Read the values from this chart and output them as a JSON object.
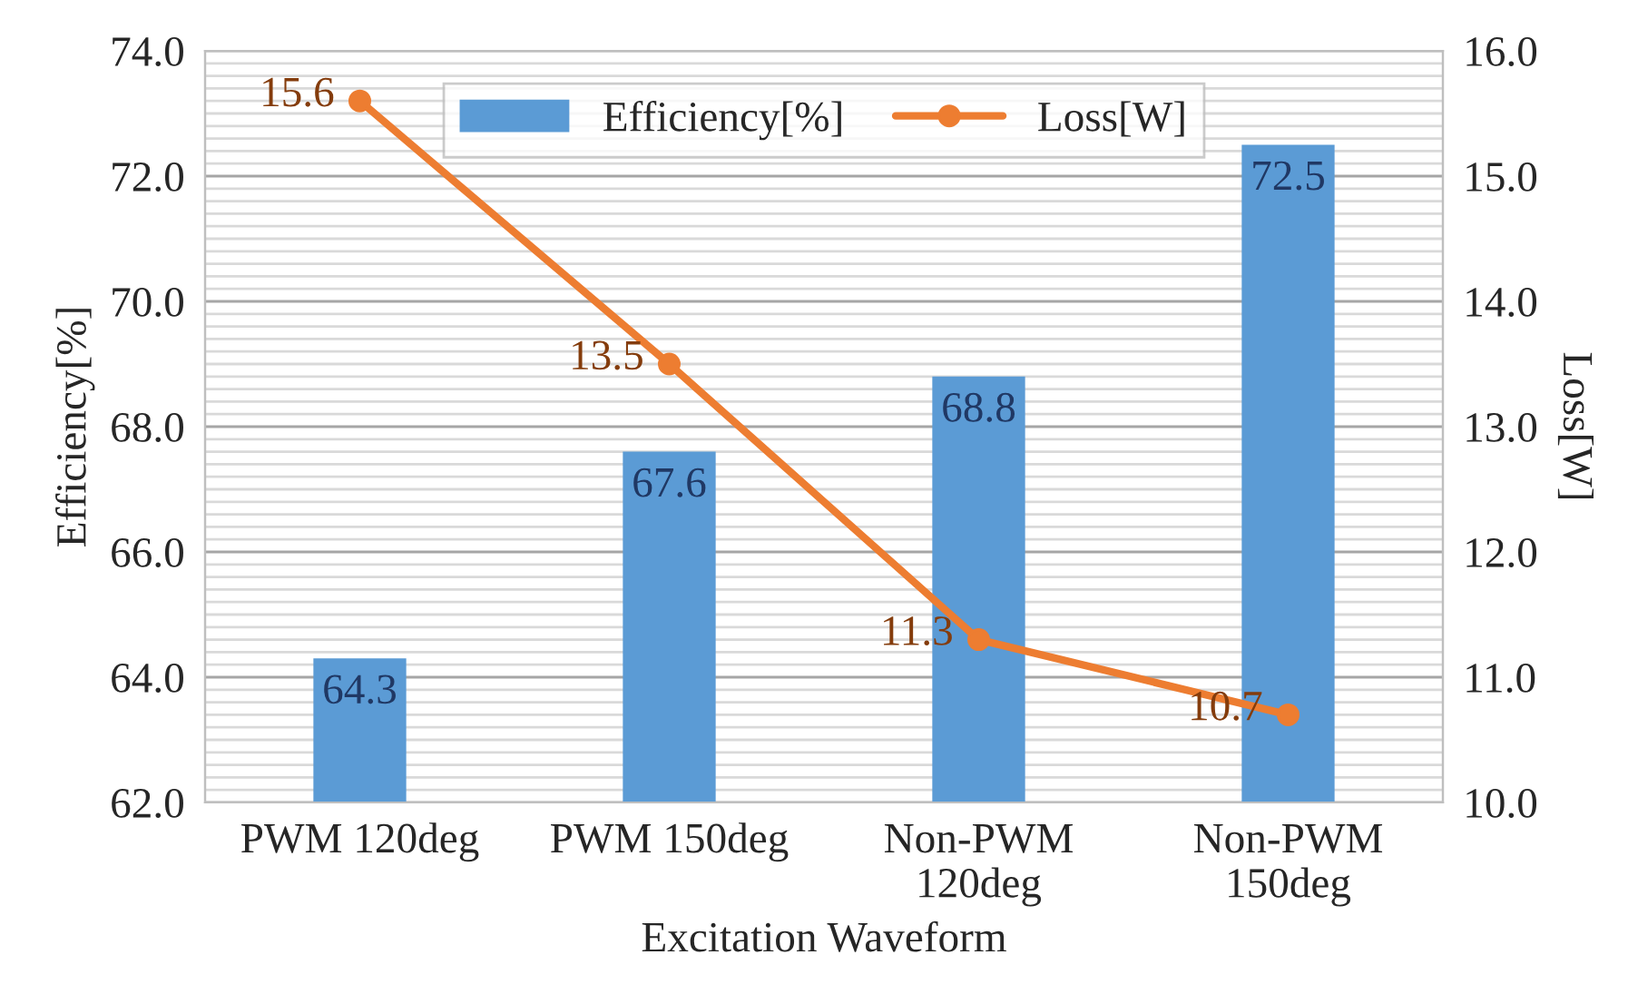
{
  "chart_data": {
    "type": "bar",
    "xlabel": "Excitation Waveform",
    "ylabel": "Efficiency[%]",
    "y2label": "Loss[W]",
    "categories": [
      "PWM 120deg",
      "PWM 150deg",
      "Non-PWM\n120deg",
      "Non-PWM\n150deg"
    ],
    "series": [
      {
        "name": "Efficiency[%]",
        "color": "#5b9bd5",
        "values": [
          64.3,
          67.6,
          68.8,
          72.5
        ]
      },
      {
        "name": "Loss[W]",
        "type": "line",
        "axis": "y2",
        "color": "#ed7d31",
        "values": [
          15.6,
          13.5,
          11.3,
          10.7
        ],
        "marker": "circle"
      }
    ],
    "ylim": [
      62.0,
      74.0
    ],
    "yticks": [
      {
        "value": 62,
        "label": "62.0"
      },
      {
        "value": 64,
        "label": "64.0"
      },
      {
        "value": 66,
        "label": "66.0"
      },
      {
        "value": 68,
        "label": "68.0"
      },
      {
        "value": 70,
        "label": "70.0"
      },
      {
        "value": 72,
        "label": "72.0"
      },
      {
        "value": 74,
        "label": "74.0"
      }
    ],
    "y2lim": [
      10.0,
      16.0
    ],
    "y2ticks": [
      {
        "value": 10,
        "label": "10.0"
      },
      {
        "value": 11,
        "label": "11.0"
      },
      {
        "value": 12,
        "label": "12.0"
      },
      {
        "value": 13,
        "label": "13.0"
      },
      {
        "value": 14,
        "label": "14.0"
      },
      {
        "value": 15,
        "label": "15.0"
      },
      {
        "value": 16,
        "label": "16.0"
      }
    ],
    "data_labels": true,
    "grid": "y",
    "legend": "top"
  }
}
